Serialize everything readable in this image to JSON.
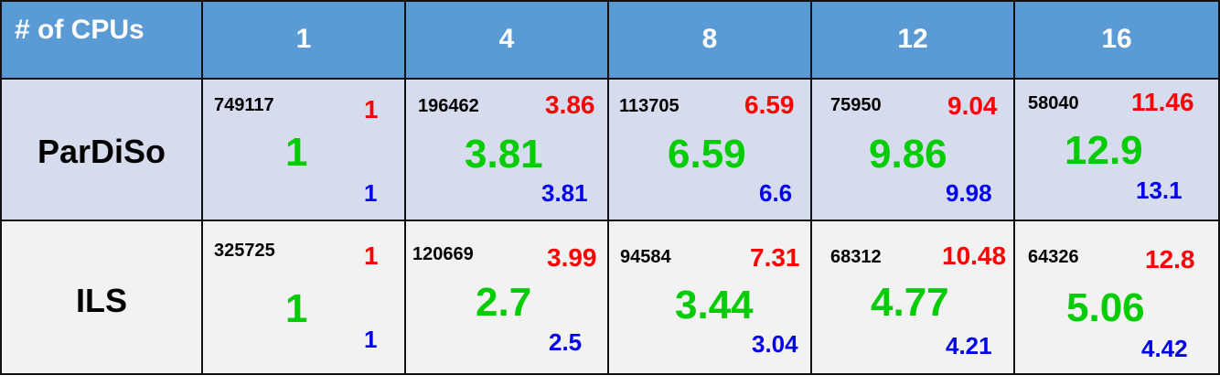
{
  "header": {
    "corner_label": "# of CPUs",
    "cpus": [
      "1",
      "4",
      "8",
      "12",
      "16"
    ]
  },
  "colors": {
    "header_bg": "#5b9bd5",
    "row1_bg": "#d6dcee",
    "row2_bg": "#f2f2f2",
    "red": "#ff0000",
    "green": "#00cc00",
    "blue": "#0000ee"
  },
  "rows": [
    {
      "label": "ParDiSo",
      "cells": [
        {
          "time": "749117",
          "red": "1",
          "green": "1",
          "blue": "1"
        },
        {
          "time": "196462",
          "red": "3.86",
          "green": "3.81",
          "blue": "3.81"
        },
        {
          "time": "113705",
          "red": "6.59",
          "green": "6.59",
          "blue": "6.6"
        },
        {
          "time": "75950",
          "red": "9.04",
          "green": "9.86",
          "blue": "9.98"
        },
        {
          "time": "58040",
          "red": "11.46",
          "green": "12.9",
          "blue": "13.1"
        }
      ]
    },
    {
      "label": "ILS",
      "cells": [
        {
          "time": "325725",
          "red": "1",
          "green": "1",
          "blue": "1"
        },
        {
          "time": "120669",
          "red": "3.99",
          "green": "2.7",
          "blue": "2.5"
        },
        {
          "time": "94584",
          "red": "7.31",
          "green": "3.44",
          "blue": "3.04"
        },
        {
          "time": "68312",
          "red": "10.48",
          "green": "4.77",
          "blue": "4.21"
        },
        {
          "time": "64326",
          "red": "12.8",
          "green": "5.06",
          "blue": "4.42"
        }
      ]
    }
  ]
}
